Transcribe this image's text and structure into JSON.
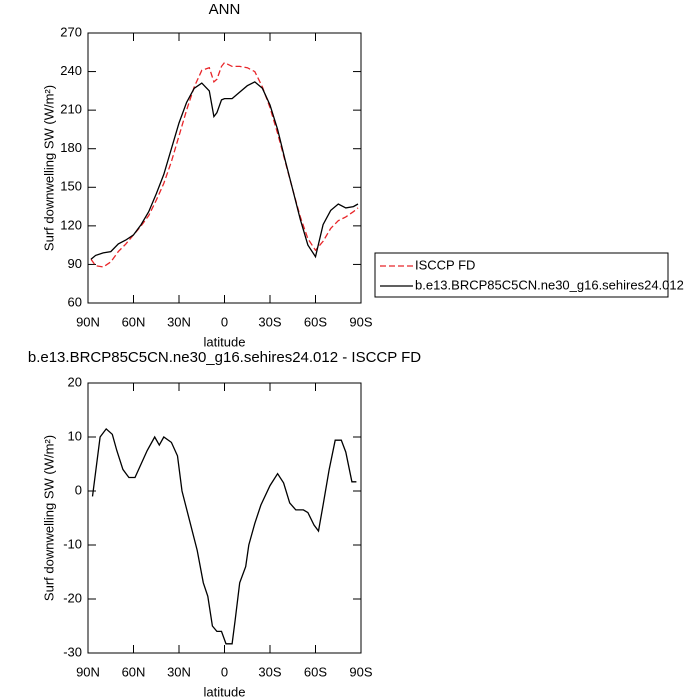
{
  "chart_data": [
    {
      "type": "line",
      "title": "ANN",
      "x_label": "latitude",
      "y_label": "Surf downwelling SW (W/m²)",
      "x": [
        88,
        85,
        80,
        75,
        70,
        65,
        60,
        55,
        50,
        45,
        40,
        35,
        30,
        25,
        20,
        15,
        10,
        7,
        5,
        2,
        0,
        -5,
        -10,
        -15,
        -20,
        -25,
        -30,
        -35,
        -40,
        -45,
        -50,
        -55,
        -60,
        -65,
        -70,
        -75,
        -80,
        -85,
        -88
      ],
      "series": [
        {
          "name": "ISCCP FD",
          "color": "#e8262a",
          "dash": true,
          "values": [
            94,
            89,
            88,
            92,
            100,
            106,
            113,
            120,
            128,
            140,
            153,
            170,
            190,
            210,
            228,
            241,
            243,
            232,
            234,
            244,
            247,
            244,
            244,
            243,
            240,
            228,
            212,
            192,
            170,
            148,
            127,
            110,
            101,
            108,
            118,
            124,
            127,
            131,
            134
          ]
        },
        {
          "name": "b.e13.BRCP85C5CN.ne30_g16.sehires24.012",
          "color": "#000000",
          "dash": false,
          "values": [
            94,
            97,
            99,
            100,
            106,
            109,
            113,
            121,
            131,
            145,
            160,
            180,
            200,
            216,
            227,
            231,
            225,
            205,
            208,
            218,
            219,
            219,
            224,
            229,
            232,
            227,
            214,
            195,
            171,
            148,
            125,
            105,
            96,
            121,
            132,
            137,
            134,
            135,
            137
          ]
        }
      ],
      "xlim": [
        90,
        -90
      ],
      "ylim": [
        60,
        270
      ],
      "xticks": [
        {
          "value": 90,
          "label": "90N"
        },
        {
          "value": 60,
          "label": "60N"
        },
        {
          "value": 30,
          "label": "30N"
        },
        0,
        {
          "value": -30,
          "label": "30S"
        },
        {
          "value": -60,
          "label": "60S"
        },
        {
          "value": -90,
          "label": "90S"
        }
      ],
      "yticks": [
        60,
        90,
        120,
        150,
        180,
        210,
        240,
        270
      ],
      "legend": "right"
    },
    {
      "type": "line",
      "title": "b.e13.BRCP85C5CN.ne30_g16.sehires24.012 - ISCCP FD",
      "x_label": "latitude",
      "y_label": "Surf downwelling SW (W/m²)",
      "x": [
        87,
        82,
        78,
        74,
        71,
        67,
        63,
        59,
        55,
        51,
        46,
        43,
        40,
        35,
        31,
        28,
        23,
        18,
        14,
        11,
        8,
        5,
        2,
        -1,
        -5,
        -7,
        -10,
        -14,
        -16,
        -20,
        -24,
        -30,
        -35,
        -39,
        -43,
        -47,
        -52,
        -55,
        -59,
        -62,
        -65,
        -69,
        -73,
        -77,
        -80,
        -84,
        -87
      ],
      "values": [
        -1,
        10,
        11.5,
        10.5,
        7.5,
        4,
        2.5,
        2.5,
        5,
        7.5,
        10,
        8.5,
        10,
        9,
        6.5,
        0,
        -5.5,
        -11,
        -17,
        -19.5,
        -25,
        -26,
        -26,
        -28.3,
        -28.3,
        -24,
        -17,
        -14,
        -10,
        -6,
        -2.6,
        1,
        3.2,
        1.5,
        -2.2,
        -3.5,
        -3.5,
        -4,
        -6.3,
        -7.4,
        -2.6,
        3.9,
        9.4,
        9.4,
        7.2,
        1.7,
        1.7
      ],
      "color": "#000000",
      "xlim": [
        90,
        -90
      ],
      "ylim": [
        -30,
        20
      ],
      "xticks": [
        {
          "value": 90,
          "label": "90N"
        },
        {
          "value": 60,
          "label": "60N"
        },
        {
          "value": 30,
          "label": "30N"
        },
        0,
        {
          "value": -30,
          "label": "30S"
        },
        {
          "value": -60,
          "label": "60S"
        },
        {
          "value": -90,
          "label": "90S"
        }
      ],
      "yticks": [
        -30,
        -20,
        -10,
        0,
        10,
        20
      ]
    }
  ]
}
